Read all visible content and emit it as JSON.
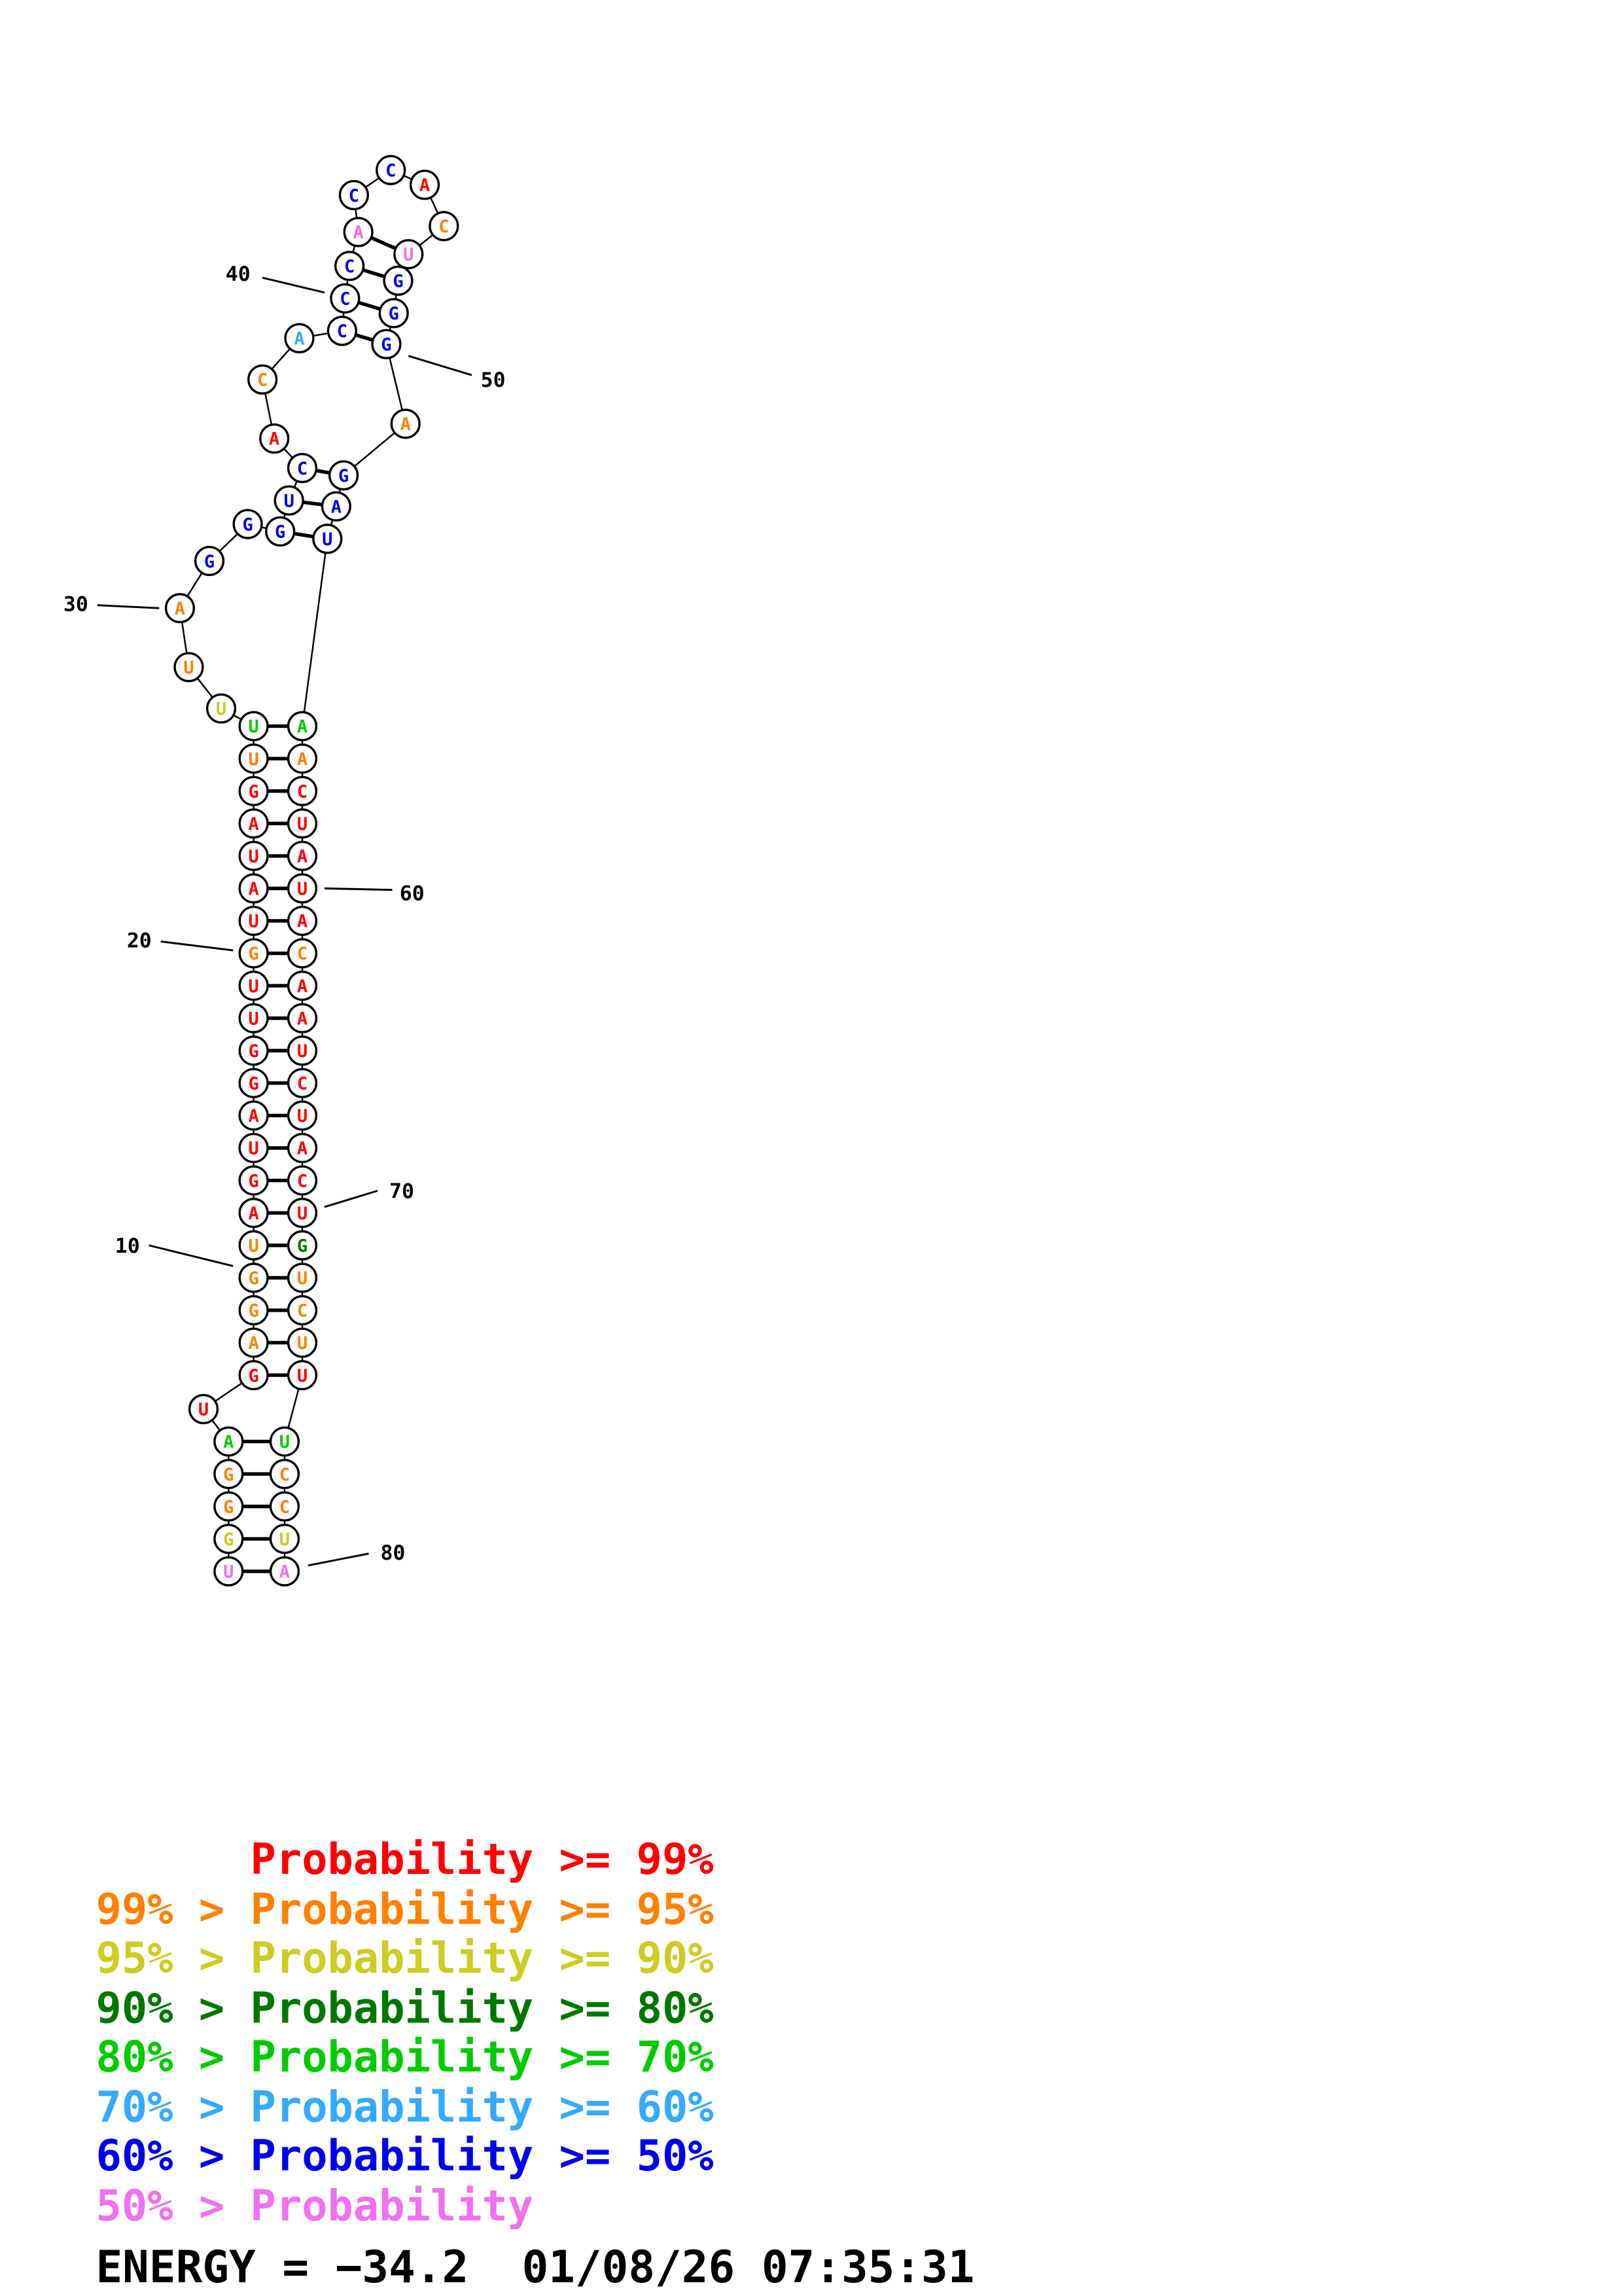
{
  "structure": {
    "type": "rna-secondary-structure",
    "nucleotides": [
      [
        1,
        "U",
        155,
        1065,
        "#F070F0"
      ],
      [
        2,
        "G",
        155,
        1043,
        "#CCCC22"
      ],
      [
        3,
        "G",
        155,
        1021,
        "#FF8000"
      ],
      [
        4,
        "G",
        155,
        999,
        "#FF8000"
      ],
      [
        5,
        "A",
        155,
        977,
        "#00CC00"
      ],
      [
        6,
        "U",
        138,
        955,
        "#FF0000"
      ],
      [
        7,
        "G",
        172,
        932,
        "#FF0000"
      ],
      [
        8,
        "A",
        172,
        910,
        "#FF8000"
      ],
      [
        9,
        "G",
        172,
        888,
        "#FF8000"
      ],
      [
        10,
        "G",
        172,
        866,
        "#FF8000"
      ],
      [
        11,
        "U",
        172,
        844,
        "#FF8000"
      ],
      [
        12,
        "A",
        172,
        822,
        "#FF0000"
      ],
      [
        13,
        "G",
        172,
        800,
        "#FF0000"
      ],
      [
        14,
        "U",
        172,
        778,
        "#FF0000"
      ],
      [
        15,
        "A",
        172,
        756,
        "#FF0000"
      ],
      [
        16,
        "G",
        172,
        734,
        "#FF0000"
      ],
      [
        17,
        "G",
        172,
        712,
        "#FF0000"
      ],
      [
        18,
        "U",
        172,
        690,
        "#FF0000"
      ],
      [
        19,
        "U",
        172,
        668,
        "#FF0000"
      ],
      [
        20,
        "G",
        172,
        646,
        "#FF8000"
      ],
      [
        21,
        "U",
        172,
        624,
        "#FF0000"
      ],
      [
        22,
        "A",
        172,
        602,
        "#FF0000"
      ],
      [
        23,
        "U",
        172,
        580,
        "#FF0000"
      ],
      [
        24,
        "A",
        172,
        558,
        "#FF0000"
      ],
      [
        25,
        "G",
        172,
        536,
        "#FF0000"
      ],
      [
        26,
        "U",
        172,
        514,
        "#FF8000"
      ],
      [
        27,
        "U",
        172,
        492,
        "#00CC00"
      ],
      [
        28,
        "U",
        150,
        480,
        "#CCCC22"
      ],
      [
        29,
        "U",
        128,
        452,
        "#FF8000"
      ],
      [
        30,
        "A",
        122,
        412,
        "#FF8000"
      ],
      [
        31,
        "G",
        142,
        380,
        "#0000EE"
      ],
      [
        32,
        "G",
        168,
        355,
        "#0000EE"
      ],
      [
        33,
        "G",
        190,
        360,
        "#0000EE"
      ],
      [
        34,
        "U",
        196,
        339,
        "#0000EE"
      ],
      [
        35,
        "C",
        205,
        317,
        "#0000EE"
      ],
      [
        36,
        "A",
        186,
        297,
        "#FF0000"
      ],
      [
        37,
        "C",
        178,
        257,
        "#FF8000"
      ],
      [
        38,
        "A",
        203,
        229,
        "#33AAFF"
      ],
      [
        39,
        "C",
        232,
        224,
        "#0000EE"
      ],
      [
        40,
        "C",
        234,
        202,
        "#0000EE"
      ],
      [
        41,
        "C",
        237,
        180,
        "#0000EE"
      ],
      [
        42,
        "A",
        243,
        157,
        "#F070F0"
      ],
      [
        43,
        "C",
        240,
        132,
        "#0000EE"
      ],
      [
        44,
        "C",
        265,
        115,
        "#0000EE"
      ],
      [
        45,
        "A",
        288,
        125,
        "#FF0000"
      ],
      [
        46,
        "C",
        301,
        153,
        "#FF8000"
      ],
      [
        47,
        "U",
        277,
        172,
        "#F070F0"
      ],
      [
        48,
        "G",
        270,
        190,
        "#0000EE"
      ],
      [
        49,
        "G",
        267,
        212,
        "#0000EE"
      ],
      [
        50,
        "G",
        262,
        233,
        "#0000EE"
      ],
      [
        51,
        "A",
        275,
        287,
        "#FF8000"
      ],
      [
        52,
        "G",
        233,
        322,
        "#0000EE"
      ],
      [
        53,
        "A",
        228,
        343,
        "#0000EE"
      ],
      [
        54,
        "U",
        222,
        365,
        "#0000EE"
      ],
      [
        55,
        "A",
        205,
        492,
        "#00CC00"
      ],
      [
        56,
        "A",
        205,
        514,
        "#FF8000"
      ],
      [
        57,
        "C",
        205,
        536,
        "#FF0000"
      ],
      [
        58,
        "U",
        205,
        558,
        "#FF0000"
      ],
      [
        59,
        "A",
        205,
        580,
        "#FF0000"
      ],
      [
        60,
        "U",
        205,
        602,
        "#FF0000"
      ],
      [
        61,
        "A",
        205,
        624,
        "#FF0000"
      ],
      [
        62,
        "C",
        205,
        646,
        "#FF8000"
      ],
      [
        63,
        "A",
        205,
        668,
        "#FF0000"
      ],
      [
        64,
        "A",
        205,
        690,
        "#FF0000"
      ],
      [
        65,
        "U",
        205,
        712,
        "#FF0000"
      ],
      [
        66,
        "C",
        205,
        734,
        "#FF0000"
      ],
      [
        67,
        "U",
        205,
        756,
        "#FF0000"
      ],
      [
        68,
        "A",
        205,
        778,
        "#FF0000"
      ],
      [
        69,
        "C",
        205,
        800,
        "#FF0000"
      ],
      [
        70,
        "U",
        205,
        822,
        "#FF0000"
      ],
      [
        71,
        "G",
        205,
        844,
        "#007700"
      ],
      [
        72,
        "U",
        205,
        866,
        "#FF8000"
      ],
      [
        73,
        "C",
        205,
        888,
        "#FF8000"
      ],
      [
        74,
        "U",
        205,
        910,
        "#FF8000"
      ],
      [
        75,
        "U",
        205,
        932,
        "#FF0000"
      ],
      [
        76,
        "U",
        193,
        977,
        "#00CC00"
      ],
      [
        77,
        "C",
        193,
        999,
        "#FF8000"
      ],
      [
        78,
        "C",
        193,
        1021,
        "#FF8000"
      ],
      [
        79,
        "U",
        193,
        1043,
        "#CCCC22"
      ],
      [
        80,
        "A",
        193,
        1065,
        "#F070F0"
      ]
    ],
    "pairs": [
      [
        1,
        80
      ],
      [
        2,
        79
      ],
      [
        3,
        78
      ],
      [
        4,
        77
      ],
      [
        5,
        76
      ],
      [
        7,
        75
      ],
      [
        8,
        74
      ],
      [
        9,
        73
      ],
      [
        10,
        72
      ],
      [
        11,
        71
      ],
      [
        12,
        70
      ],
      [
        13,
        69
      ],
      [
        14,
        68
      ],
      [
        15,
        67
      ],
      [
        16,
        66
      ],
      [
        17,
        65
      ],
      [
        18,
        64
      ],
      [
        19,
        63
      ],
      [
        20,
        62
      ],
      [
        21,
        61
      ],
      [
        22,
        60
      ],
      [
        23,
        59
      ],
      [
        24,
        58
      ],
      [
        25,
        57
      ],
      [
        26,
        56
      ],
      [
        27,
        55
      ],
      [
        33,
        54
      ],
      [
        34,
        53
      ],
      [
        35,
        52
      ],
      [
        39,
        50
      ],
      [
        40,
        49
      ],
      [
        41,
        48
      ],
      [
        42,
        47
      ]
    ],
    "labels": [
      [
        "10",
        78,
        849,
        101,
        844,
        158,
        858
      ],
      [
        "20",
        86,
        642,
        109,
        638,
        158,
        644
      ],
      [
        "30",
        43,
        414,
        66,
        410,
        108,
        412
      ],
      [
        "40",
        153,
        190,
        178,
        188,
        220,
        198
      ],
      [
        "50",
        326,
        262,
        277,
        241,
        320,
        254
      ],
      [
        "60",
        271,
        610,
        220,
        602,
        266,
        603
      ],
      [
        "70",
        264,
        812,
        220,
        818,
        256,
        807
      ],
      [
        "80",
        258,
        1057,
        209,
        1061,
        250,
        1053
      ]
    ]
  },
  "legend": {
    "items": [
      {
        "label": "      Probability >= 99%",
        "color": "#FF0000"
      },
      {
        "label": "99% > Probability >= 95%",
        "color": "#FF8000"
      },
      {
        "label": "95% > Probability >= 90%",
        "color": "#CCCC22"
      },
      {
        "label": "90% > Probability >= 80%",
        "color": "#007700"
      },
      {
        "label": "80% > Probability >= 70%",
        "color": "#00CC00"
      },
      {
        "label": "70% > Probability >= 60%",
        "color": "#33AAFF"
      },
      {
        "label": "60% > Probability >= 50%",
        "color": "#0000EE"
      },
      {
        "label": "50% > Probability",
        "color": "#F070F0"
      }
    ]
  },
  "footer": {
    "energy_line": "ENERGY = −34.2  01/08/26 07:35:31"
  }
}
